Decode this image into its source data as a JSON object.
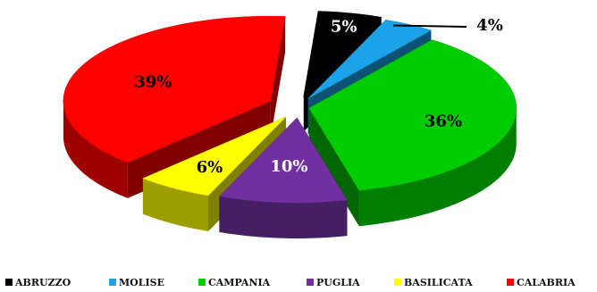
{
  "chart_data": {
    "type": "pie",
    "variant": "exploded-3d",
    "legend_position": "bottom",
    "categories": [
      "ABRUZZO",
      "MOLISE",
      "CAMPANIA",
      "PUGLIA",
      "BASILICATA",
      "CALABRIA"
    ],
    "values": [
      5,
      4,
      36,
      10,
      6,
      39
    ],
    "labels": [
      "5%",
      "4%",
      "36%",
      "10%",
      "6%",
      "39%"
    ],
    "colors": [
      "#000000",
      "#1aa3e8",
      "#00cc00",
      "#7030a0",
      "#ffff00",
      "#ff0000"
    ],
    "label_colors": [
      "#ffffff",
      "#000000",
      "#000000",
      "#ffffff",
      "#000000",
      "#000000"
    ]
  }
}
